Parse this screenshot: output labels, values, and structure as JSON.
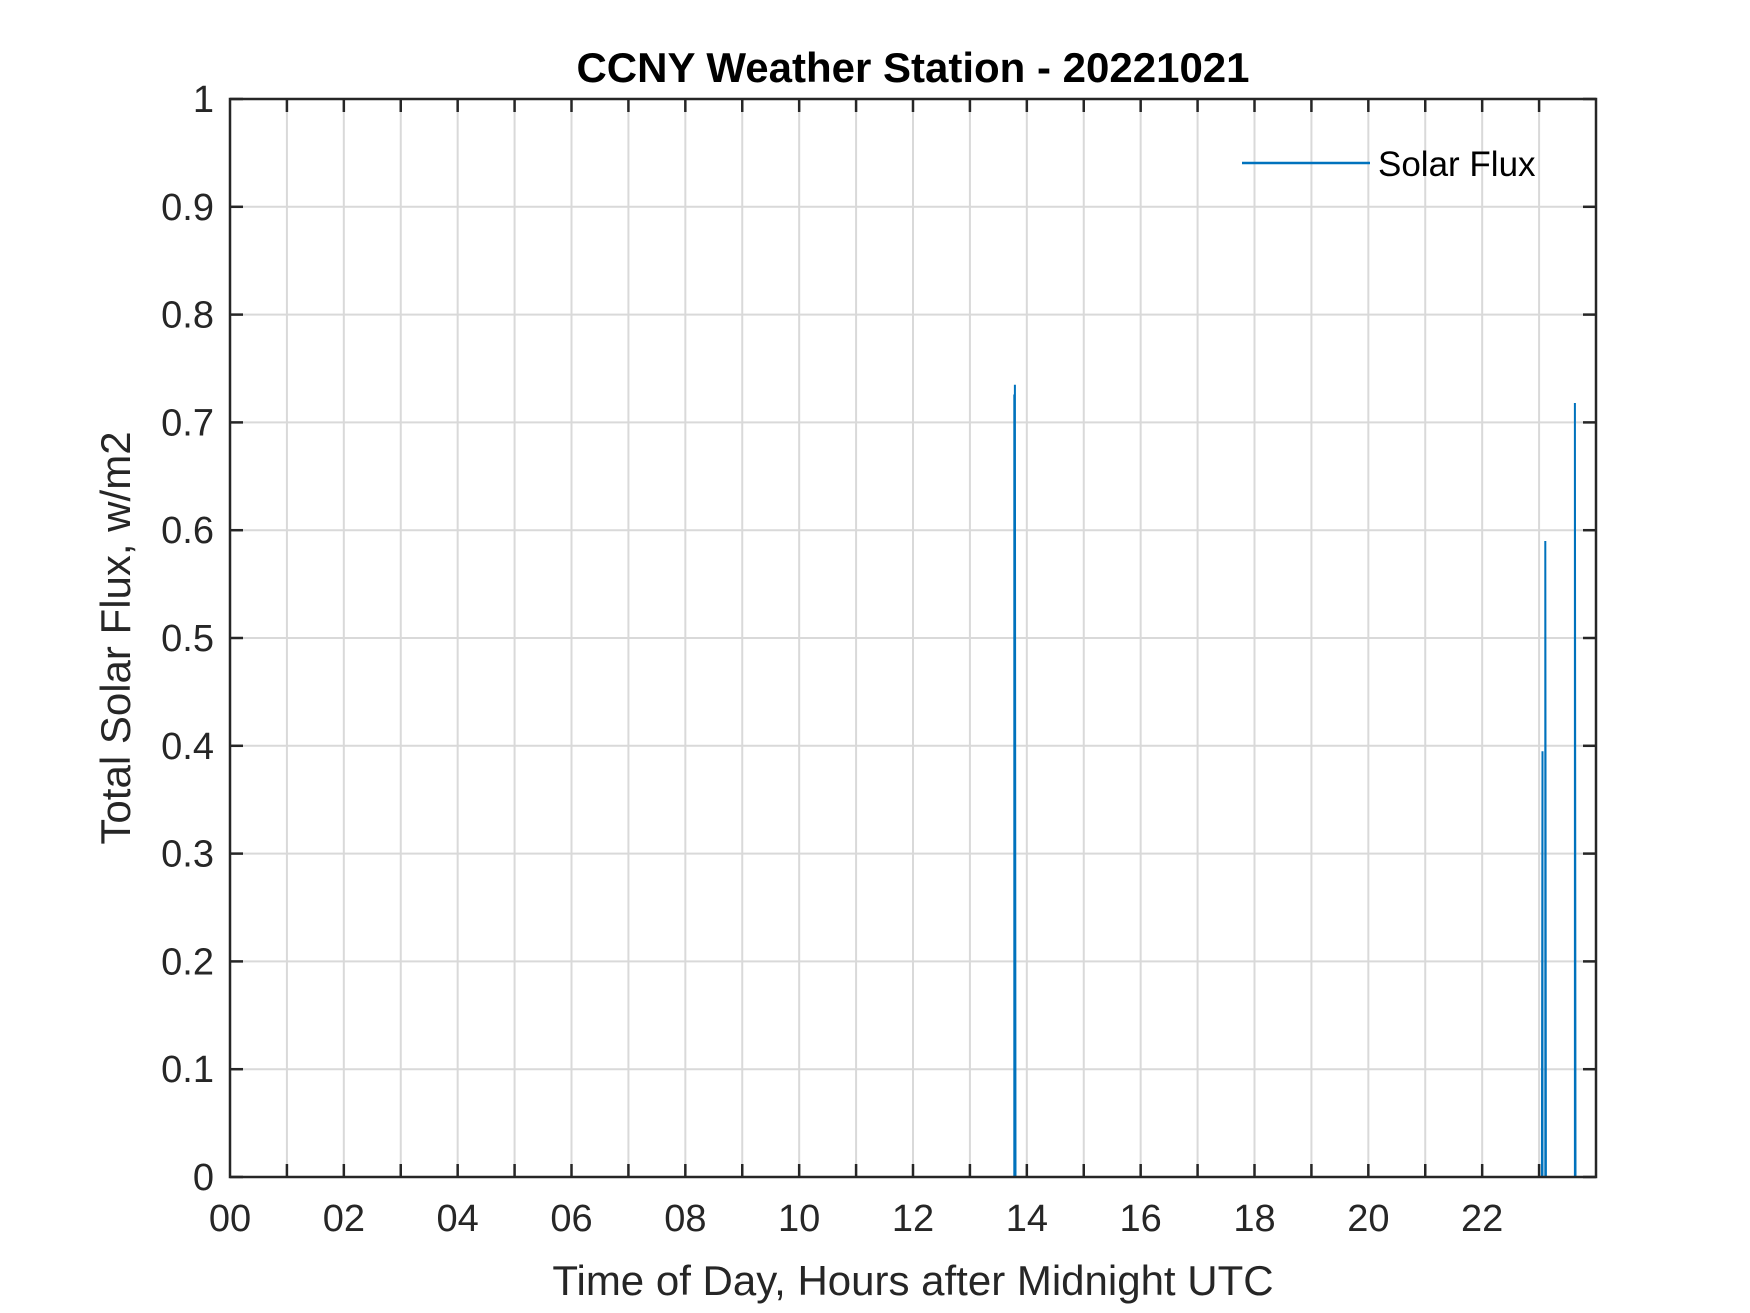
{
  "chart_data": {
    "type": "line",
    "title": "CCNY Weather Station - 20221021",
    "xlabel": "Time of Day, Hours after Midnight UTC",
    "ylabel": "Total Solar Flux, w/m2",
    "xlim": [
      0,
      24
    ],
    "ylim": [
      0,
      1
    ],
    "xticks": [
      0,
      2,
      4,
      6,
      8,
      10,
      12,
      14,
      16,
      18,
      20,
      22
    ],
    "xtick_labels": [
      "00",
      "02",
      "04",
      "06",
      "08",
      "10",
      "12",
      "14",
      "16",
      "18",
      "20",
      "22"
    ],
    "yticks": [
      0,
      0.1,
      0.2,
      0.3,
      0.4,
      0.5,
      0.6,
      0.7,
      0.8,
      0.9,
      1
    ],
    "ytick_labels": [
      "0",
      "0.1",
      "0.2",
      "0.3",
      "0.4",
      "0.5",
      "0.6",
      "0.7",
      "0.8",
      "0.9",
      "1"
    ],
    "grid": true,
    "legend": {
      "position": "top-right",
      "entries": [
        "Solar Flux"
      ]
    },
    "series": [
      {
        "name": "Solar Flux",
        "color": "#0072BD",
        "x": [
          13.78,
          13.78,
          13.79,
          13.79,
          13.8,
          23.05,
          23.06,
          23.06,
          23.11,
          23.11,
          23.12,
          23.63,
          23.63,
          23.64
        ],
        "y": [
          0,
          0.725,
          0.725,
          0.735,
          0,
          0,
          0.395,
          0,
          0,
          0.59,
          0,
          0,
          0.718,
          0
        ]
      }
    ]
  }
}
